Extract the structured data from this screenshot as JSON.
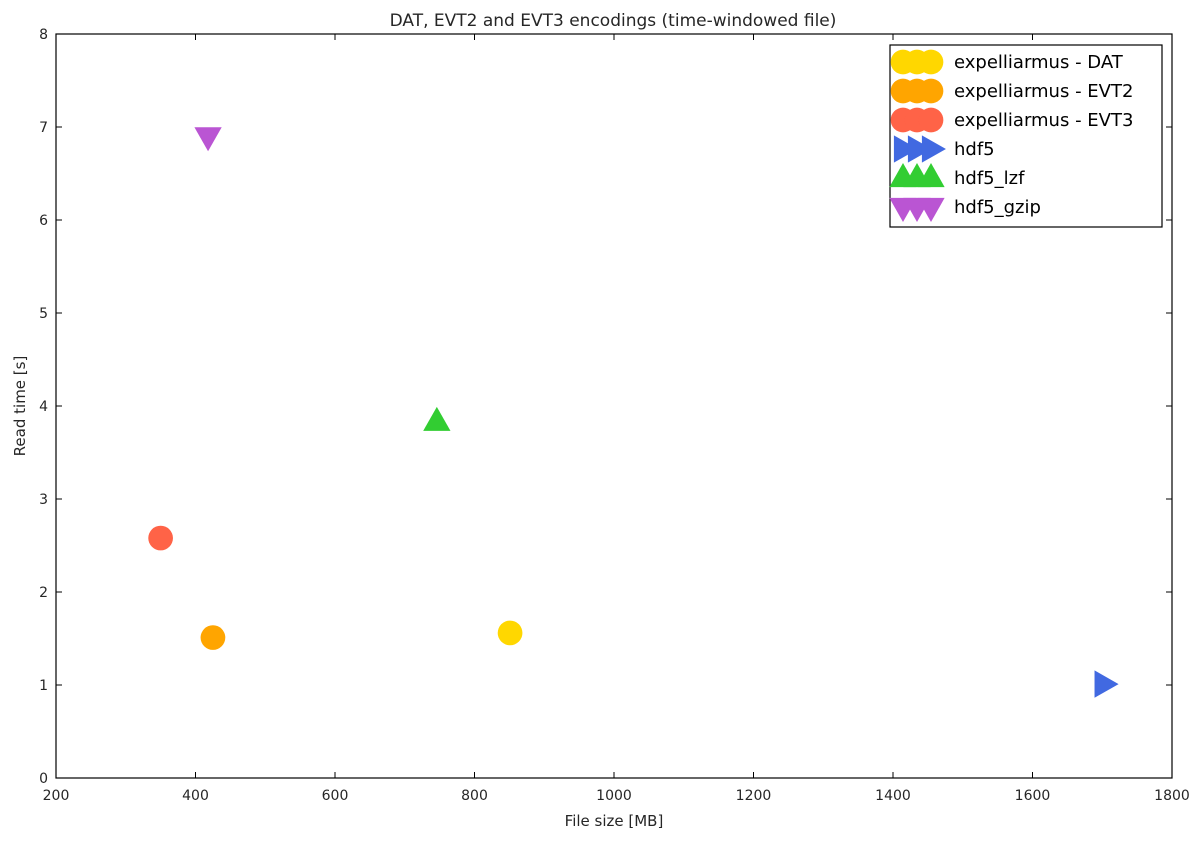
{
  "chart_data": {
    "type": "scatter",
    "title": "DAT, EVT2 and EVT3 encodings (time-windowed file)",
    "xlabel": "File size [MB]",
    "ylabel": "Read time [s]",
    "xlim": [
      200,
      1800
    ],
    "ylim": [
      0,
      8
    ],
    "xticks": [
      "200",
      "400",
      "600",
      "800",
      "1000",
      "1200",
      "1400",
      "1600",
      "1800"
    ],
    "yticks": [
      "0",
      "1",
      "2",
      "3",
      "4",
      "5",
      "6",
      "7",
      "8"
    ],
    "grid": false,
    "legend_position": "top-right",
    "series": [
      {
        "name": "expelliarmus - DAT",
        "marker": "circle",
        "color": "#FFD700",
        "x": 851,
        "y": 1.56
      },
      {
        "name": "expelliarmus - EVT2",
        "marker": "circle",
        "color": "#FFA500",
        "x": 425,
        "y": 1.51
      },
      {
        "name": "expelliarmus - EVT3",
        "marker": "circle",
        "color": "#FF6347",
        "x": 350,
        "y": 2.58
      },
      {
        "name": "hdf5",
        "marker": "triangle-right",
        "color": "#4169E1",
        "x": 1702,
        "y": 1.01
      },
      {
        "name": "hdf5_lzf",
        "marker": "triangle-up",
        "color": "#32CD32",
        "x": 746,
        "y": 3.83
      },
      {
        "name": "hdf5_gzip",
        "marker": "triangle-down",
        "color": "#BA55D3",
        "x": 418,
        "y": 6.9
      }
    ]
  }
}
